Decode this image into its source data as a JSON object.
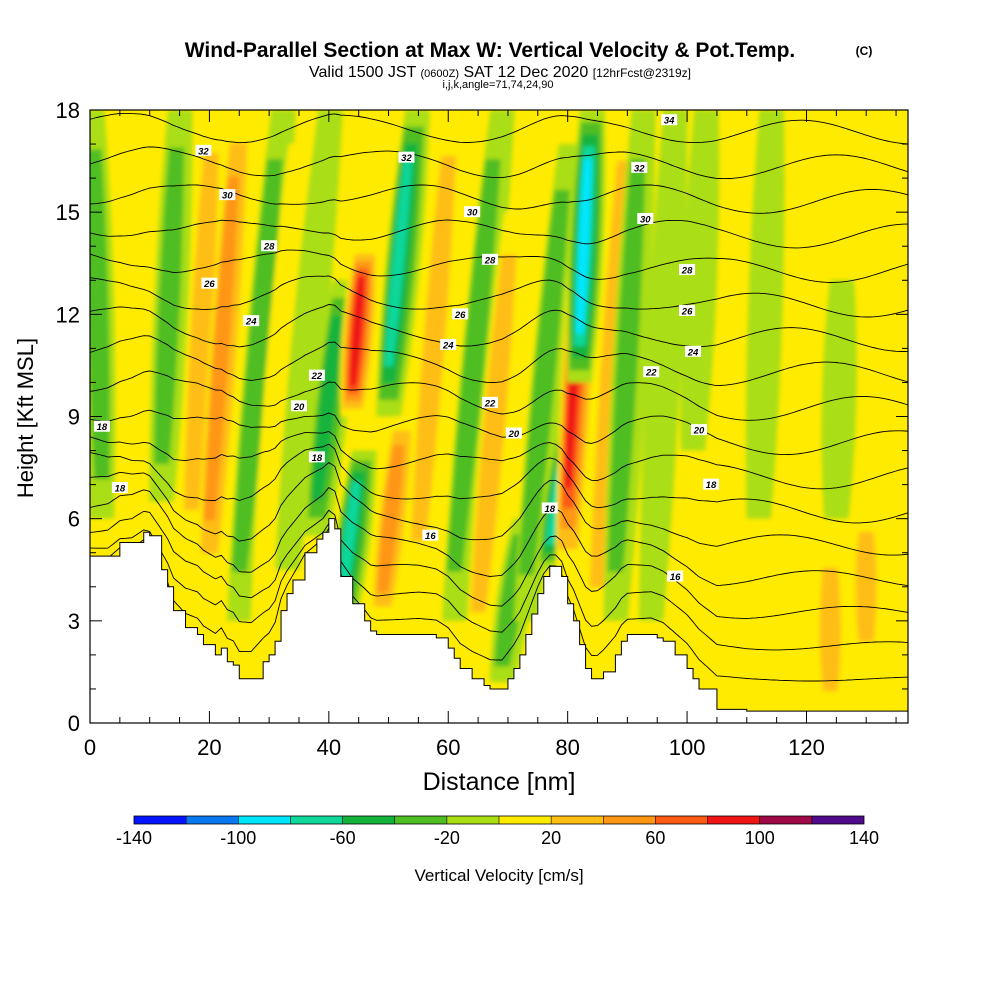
{
  "header": {
    "title_main": "Wind-Parallel Section at Max W: Vertical Velocity & Pot.Temp.",
    "title_tag": "(C)",
    "valid_prefix": "Valid 1500 JST",
    "valid_utc": "(0600Z)",
    "valid_date": "SAT 12 Dec 2020",
    "forecast_tag": "[12hrFcst@2319z]",
    "section_params": "i,j,k,angle=71,74,24,90"
  },
  "chart_data": {
    "type": "contour-section",
    "xlabel": "Distance [nm]",
    "ylabel": "Height [Kft MSL]",
    "xlim": [
      0,
      137
    ],
    "ylim": [
      0,
      18
    ],
    "x_ticks": [
      "0",
      "20",
      "40",
      "60",
      "80",
      "100",
      "120"
    ],
    "x_tick_values": [
      0,
      20,
      40,
      60,
      80,
      100,
      120
    ],
    "y_ticks": [
      "0",
      "3",
      "6",
      "9",
      "12",
      "15",
      "18"
    ],
    "y_tick_values": [
      0,
      3,
      6,
      9,
      12,
      15,
      18
    ],
    "colorbar": {
      "label": "Vertical Velocity [cm/s]",
      "tick_labels": [
        "-140",
        "-100",
        "-60",
        "-20",
        "20",
        "60",
        "100",
        "140"
      ],
      "bins": [
        {
          "lo": -140,
          "hi": -120,
          "color": "#0014ff"
        },
        {
          "lo": -120,
          "hi": -100,
          "color": "#0a78f0"
        },
        {
          "lo": -100,
          "hi": -80,
          "color": "#00e6ff"
        },
        {
          "lo": -80,
          "hi": -60,
          "color": "#10d79a"
        },
        {
          "lo": -60,
          "hi": -40,
          "color": "#14b43c"
        },
        {
          "lo": -40,
          "hi": -20,
          "color": "#4fbe22"
        },
        {
          "lo": -20,
          "hi": 0,
          "color": "#aade14"
        },
        {
          "lo": 0,
          "hi": 20,
          "color": "#ffeb00"
        },
        {
          "lo": 20,
          "hi": 40,
          "color": "#ffbe14"
        },
        {
          "lo": 40,
          "hi": 60,
          "color": "#ff9614"
        },
        {
          "lo": 60,
          "hi": 80,
          "color": "#ff5a14"
        },
        {
          "lo": 80,
          "hi": 100,
          "color": "#f01414"
        },
        {
          "lo": 100,
          "hi": 120,
          "color": "#a00a46"
        },
        {
          "lo": 120,
          "hi": 140,
          "color": "#500a8c"
        }
      ]
    },
    "terrain": {
      "description_units": "x in nm, height in kft MSL",
      "x": [
        0,
        3,
        5,
        7,
        9,
        10,
        12,
        13,
        14,
        16,
        18,
        19,
        21,
        22,
        23,
        24,
        25,
        27,
        29,
        30,
        31,
        32,
        33,
        34,
        36,
        38,
        39,
        40,
        41,
        42,
        44,
        46,
        47,
        48,
        50,
        52,
        55,
        58,
        60,
        61,
        62,
        64,
        66,
        67,
        68,
        69,
        70,
        71,
        72,
        73,
        74,
        75,
        76,
        77,
        78,
        79,
        80,
        81,
        82,
        83,
        84,
        85,
        86,
        88,
        89,
        90,
        91,
        92,
        94,
        95,
        96,
        98,
        100,
        101,
        102,
        105,
        110,
        115,
        120,
        125,
        130,
        137
      ],
      "y": [
        4.9,
        4.9,
        5.3,
        5.3,
        5.6,
        5.5,
        4.5,
        4.0,
        3.3,
        2.8,
        2.6,
        2.3,
        2.0,
        2.2,
        1.8,
        1.7,
        1.3,
        1.3,
        1.8,
        2.0,
        2.4,
        3.3,
        3.8,
        4.2,
        5.0,
        5.4,
        5.6,
        6.0,
        5.7,
        4.3,
        3.5,
        3.0,
        2.7,
        2.6,
        2.6,
        2.6,
        2.6,
        2.5,
        2.2,
        1.9,
        1.6,
        1.3,
        1.1,
        1.0,
        1.0,
        1.0,
        1.3,
        1.6,
        2.0,
        2.6,
        3.2,
        3.8,
        4.3,
        4.6,
        4.6,
        4.3,
        3.5,
        3.0,
        2.3,
        1.6,
        1.3,
        1.3,
        1.5,
        2.0,
        2.4,
        2.6,
        2.6,
        2.6,
        2.6,
        2.5,
        2.4,
        2.0,
        1.6,
        1.3,
        1.0,
        0.4,
        0.35,
        0.35,
        0.35,
        0.35,
        0.35,
        0.35
      ]
    },
    "velocity_cells": [
      {
        "x": 2,
        "y0": 6.0,
        "y1": 18,
        "w": -40,
        "lean": -0.15
      },
      {
        "x": 7,
        "y0": 7.0,
        "y1": 18,
        "w": 30,
        "lean": 0.2
      },
      {
        "x": 12,
        "y0": 6.5,
        "y1": 18,
        "w": -40,
        "lean": 0.3
      },
      {
        "x": 17,
        "y0": 5.0,
        "y1": 18,
        "w": 40,
        "lean": 0.35
      },
      {
        "x": 20,
        "y0": 4.0,
        "y1": 18,
        "w": 65,
        "lean": 0.45
      },
      {
        "x": 25,
        "y0": 3.0,
        "y1": 18,
        "w": -40,
        "lean": 0.55
      },
      {
        "x": 29,
        "y0": 3.0,
        "y1": 17,
        "w": 30,
        "lean": 0.5
      },
      {
        "x": 33,
        "y0": 4.5,
        "y1": 18,
        "w": -30,
        "lean": 0.6
      },
      {
        "x": 38,
        "y0": 5.5,
        "y1": 13,
        "w": -60,
        "lean": 0.7
      },
      {
        "x": 42,
        "y0": 2.5,
        "y1": 8.0,
        "w": -80,
        "lean": 0.8
      },
      {
        "x": 44,
        "y0": 9.0,
        "y1": 14,
        "w": 100,
        "lean": 0.5
      },
      {
        "x": 49,
        "y0": 3.0,
        "y1": 9.0,
        "w": 65,
        "lean": 0.7
      },
      {
        "x": 50,
        "y0": 9.0,
        "y1": 18,
        "w": -80,
        "lean": 0.6
      },
      {
        "x": 55,
        "y0": 4.0,
        "y1": 18,
        "w": 40,
        "lean": 0.5
      },
      {
        "x": 61,
        "y0": 3.0,
        "y1": 18,
        "w": -50,
        "lean": 0.6
      },
      {
        "x": 65,
        "y0": 2.0,
        "y1": 15,
        "w": 50,
        "lean": 0.55
      },
      {
        "x": 69,
        "y0": 1.2,
        "y1": 6.0,
        "w": -50,
        "lean": 0.9
      },
      {
        "x": 73,
        "y0": 3.0,
        "y1": 17,
        "w": -40,
        "lean": 0.6
      },
      {
        "x": 77,
        "y0": 4.5,
        "y1": 9.0,
        "w": -95,
        "lean": 1.0
      },
      {
        "x": 80,
        "y0": 4.5,
        "y1": 18,
        "w": 110,
        "lean": 0.35
      },
      {
        "x": 82,
        "y0": 10,
        "y1": 18,
        "w": -110,
        "lean": 0.3
      },
      {
        "x": 85,
        "y0": 2.5,
        "y1": 18,
        "w": 45,
        "lean": 0.4
      },
      {
        "x": 88,
        "y0": 3.0,
        "y1": 18,
        "w": -45,
        "lean": 0.35
      },
      {
        "x": 94,
        "y0": 3.0,
        "y1": 18,
        "w": -35,
        "lean": 0.3
      },
      {
        "x": 101,
        "y0": 8.0,
        "y1": 18,
        "w": -25,
        "lean": 0.25
      },
      {
        "x": 112,
        "y0": 6.0,
        "y1": 18,
        "w": -20,
        "lean": 0.2
      },
      {
        "x": 124,
        "y0": 0.5,
        "y1": 5.0,
        "w": 55,
        "lean": 0.0
      },
      {
        "x": 125,
        "y0": 6.0,
        "y1": 13,
        "w": -35,
        "lean": 0.15
      },
      {
        "x": 130,
        "y0": 2.0,
        "y1": 6.0,
        "w": 40,
        "lean": 0.0
      }
    ],
    "isentropes": {
      "levels": [
        16,
        17,
        18,
        19,
        20,
        21,
        22,
        23,
        24,
        25,
        26,
        27,
        28,
        29,
        30,
        31,
        32,
        33,
        34
      ],
      "labeled": [
        {
          "text": "34",
          "x": 97,
          "y": 17.7
        },
        {
          "text": "32",
          "x": 19,
          "y": 16.8
        },
        {
          "text": "32",
          "x": 53,
          "y": 16.6
        },
        {
          "text": "32",
          "x": 92,
          "y": 16.3
        },
        {
          "text": "30",
          "x": 23,
          "y": 15.5
        },
        {
          "text": "30",
          "x": 64,
          "y": 15.0
        },
        {
          "text": "30",
          "x": 93,
          "y": 14.8
        },
        {
          "text": "28",
          "x": 30,
          "y": 14.0
        },
        {
          "text": "28",
          "x": 67,
          "y": 13.6
        },
        {
          "text": "28",
          "x": 100,
          "y": 13.3
        },
        {
          "text": "26",
          "x": 20,
          "y": 12.9
        },
        {
          "text": "26",
          "x": 62,
          "y": 12.0
        },
        {
          "text": "26",
          "x": 100,
          "y": 12.1
        },
        {
          "text": "24",
          "x": 27,
          "y": 11.8
        },
        {
          "text": "24",
          "x": 60,
          "y": 11.1
        },
        {
          "text": "24",
          "x": 101,
          "y": 10.9
        },
        {
          "text": "22",
          "x": 38,
          "y": 10.2
        },
        {
          "text": "22",
          "x": 67,
          "y": 9.4
        },
        {
          "text": "22",
          "x": 94,
          "y": 10.3
        },
        {
          "text": "20",
          "x": 35,
          "y": 9.3
        },
        {
          "text": "20",
          "x": 71,
          "y": 8.5
        },
        {
          "text": "20",
          "x": 102,
          "y": 8.6
        },
        {
          "text": "18",
          "x": 2,
          "y": 8.7
        },
        {
          "text": "18",
          "x": 38,
          "y": 7.8
        },
        {
          "text": "18",
          "x": 77,
          "y": 6.3
        },
        {
          "text": "18",
          "x": 104,
          "y": 7.0
        },
        {
          "text": "18",
          "x": 5,
          "y": 6.9
        },
        {
          "text": "16",
          "x": 57,
          "y": 5.5
        },
        {
          "text": "16",
          "x": 98,
          "y": 4.3
        }
      ]
    }
  }
}
